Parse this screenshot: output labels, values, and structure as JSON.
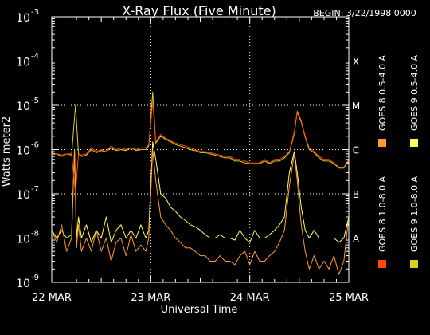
{
  "chart_data": {
    "type": "line",
    "title": "X-Ray Flux (Five Minute)",
    "begin": "BEGIN: 3/22/1998 0000",
    "xlabel": "Universal Time",
    "ylabel": "Watts meter2",
    "y_scale": "log",
    "ylim": [
      1e-09,
      0.001
    ],
    "y_ticks": [
      {
        "value": 0.001,
        "base": "10",
        "exp": "-3"
      },
      {
        "value": 0.0001,
        "base": "10",
        "exp": "-4"
      },
      {
        "value": 1e-05,
        "base": "10",
        "exp": "-5"
      },
      {
        "value": 1e-06,
        "base": "10",
        "exp": "-6"
      },
      {
        "value": 1e-07,
        "base": "10",
        "exp": "-7"
      },
      {
        "value": 1e-08,
        "base": "10",
        "exp": "-8"
      },
      {
        "value": 1e-09,
        "base": "10",
        "exp": "-9"
      }
    ],
    "xlim": [
      "1998-03-22",
      "1998-03-25"
    ],
    "x_ticks": [
      {
        "label": "22 MAR",
        "value": 0
      },
      {
        "label": "23 MAR",
        "value": 1
      },
      {
        "label": "24 MAR",
        "value": 2
      },
      {
        "label": "25 MAR",
        "value": 3
      }
    ],
    "gridlines": {
      "horizontal": "dotted",
      "vertical": "dotted"
    },
    "flare_classes": [
      {
        "label": "X",
        "value": 0.0001
      },
      {
        "label": "M",
        "value": 1e-05
      },
      {
        "label": "C",
        "value": 1e-06
      },
      {
        "label": "B",
        "value": 1e-07
      },
      {
        "label": "A",
        "value": 1e-08
      }
    ],
    "legend_placement": "right, vertical",
    "series": [
      {
        "name": "GOES 8 1.0-8.0 A",
        "color": "#ff4a00",
        "x": [
          0.0,
          0.05,
          0.1,
          0.15,
          0.2,
          0.24,
          0.27,
          0.3,
          0.35,
          0.4,
          0.45,
          0.5,
          0.55,
          0.6,
          0.65,
          0.7,
          0.75,
          0.8,
          0.85,
          0.9,
          0.95,
          0.98,
          1.02,
          1.05,
          1.1,
          1.15,
          1.2,
          1.25,
          1.3,
          1.35,
          1.4,
          1.45,
          1.5,
          1.55,
          1.6,
          1.65,
          1.7,
          1.75,
          1.8,
          1.85,
          1.9,
          1.95,
          2.0,
          2.05,
          2.1,
          2.15,
          2.2,
          2.25,
          2.3,
          2.35,
          2.4,
          2.45,
          2.48,
          2.52,
          2.56,
          2.6,
          2.65,
          2.7,
          2.75,
          2.8,
          2.85,
          2.9,
          2.95,
          3.0
        ],
        "y": [
          8.5e-07,
          8e-07,
          7.5e-07,
          8e-07,
          8e-07,
          1e-07,
          8e-07,
          7.5e-07,
          8e-07,
          1.1e-06,
          9e-07,
          1e-06,
          9e-07,
          1.2e-06,
          1e-06,
          1.1e-06,
          1e-06,
          1.1e-06,
          1e-06,
          1.1e-06,
          1.1e-06,
          1.3e-06,
          1.2e-05,
          1.5e-06,
          2.2e-06,
          1.8e-06,
          1.6e-06,
          1.4e-06,
          1.3e-06,
          1.2e-06,
          1.1e-06,
          1e-06,
          9e-07,
          9e-07,
          8.5e-07,
          8e-07,
          7.5e-07,
          7e-07,
          7e-07,
          6e-07,
          6e-07,
          5.5e-07,
          5e-07,
          5e-07,
          5e-07,
          6e-07,
          5e-07,
          6e-07,
          6e-07,
          7e-07,
          9e-07,
          2.5e-06,
          7.5e-06,
          4.5e-06,
          2e-06,
          1.1e-06,
          9e-07,
          7e-07,
          6e-07,
          6e-07,
          5e-07,
          4e-07,
          4e-07,
          6e-07
        ]
      },
      {
        "name": "GOES 8 0.5-4.0 A",
        "color": "#ff9a30",
        "x": [
          0.0,
          0.05,
          0.1,
          0.15,
          0.2,
          0.23,
          0.25,
          0.27,
          0.3,
          0.35,
          0.4,
          0.45,
          0.5,
          0.55,
          0.6,
          0.65,
          0.7,
          0.75,
          0.8,
          0.85,
          0.9,
          0.95,
          0.98,
          1.02,
          1.05,
          1.1,
          1.15,
          1.2,
          1.25,
          1.3,
          1.35,
          1.4,
          1.45,
          1.5,
          1.55,
          1.6,
          1.65,
          1.7,
          1.75,
          1.8,
          1.85,
          1.9,
          1.95,
          2.0,
          2.05,
          2.1,
          2.15,
          2.2,
          2.25,
          2.3,
          2.35,
          2.4,
          2.45,
          2.48,
          2.52,
          2.56,
          2.6,
          2.65,
          2.7,
          2.75,
          2.8,
          2.85,
          2.9,
          2.95,
          3.0
        ],
        "y": [
          1.5e-08,
          8e-09,
          2e-08,
          5e-09,
          1e-08,
          1e-06,
          6e-09,
          2e-08,
          5e-09,
          1e-08,
          5e-09,
          1.5e-08,
          5e-09,
          1e-08,
          3e-09,
          8e-09,
          1e-08,
          4e-09,
          1.2e-08,
          5e-09,
          7e-09,
          5e-09,
          1e-08,
          1e-06,
          2e-07,
          3e-08,
          2e-08,
          1.5e-08,
          1e-08,
          8e-09,
          6e-09,
          6e-09,
          5e-09,
          4e-09,
          4e-09,
          3e-09,
          3e-09,
          4e-09,
          3e-09,
          3e-09,
          2.5e-09,
          4e-09,
          5e-09,
          2.5e-09,
          5e-09,
          3e-09,
          3e-09,
          4e-09,
          5e-09,
          8e-09,
          1.5e-08,
          1.5e-07,
          8e-07,
          2e-07,
          2e-08,
          5e-09,
          2e-09,
          4e-09,
          2e-09,
          3e-09,
          2e-09,
          4e-09,
          1.5e-09,
          3e-09,
          3e-08
        ]
      },
      {
        "name": "GOES 9 1.0-8.0 A",
        "color": "#d8d020",
        "x": [
          0.0,
          0.05,
          0.1,
          0.15,
          0.2,
          0.24,
          0.27,
          0.3,
          0.35,
          0.4,
          0.45,
          0.5,
          0.55,
          0.6,
          0.65,
          0.7,
          0.75,
          0.8,
          0.85,
          0.9,
          0.95,
          0.98,
          1.02,
          1.05,
          1.1,
          1.15,
          1.2,
          1.25,
          1.3,
          1.35,
          1.4,
          1.45,
          1.5,
          1.55,
          1.6,
          1.65,
          1.7,
          1.75,
          1.8,
          1.85,
          1.9,
          1.95,
          2.0,
          2.05,
          2.1,
          2.15,
          2.2,
          2.25,
          2.3,
          2.35,
          2.4,
          2.45,
          2.48,
          2.52,
          2.56,
          2.6,
          2.65,
          2.7,
          2.75,
          2.8,
          2.85,
          2.9,
          2.95,
          3.0
        ],
        "y": [
          8e-07,
          8e-07,
          7e-07,
          8e-07,
          7.5e-07,
          1e-05,
          8e-07,
          7e-07,
          7.5e-07,
          1e-06,
          8.5e-07,
          9.5e-07,
          9e-07,
          1.1e-06,
          9.5e-07,
          1e-06,
          9.5e-07,
          1.1e-06,
          9.5e-07,
          1e-06,
          1e-06,
          1.2e-06,
          2e-05,
          1.4e-06,
          2e-06,
          1.7e-06,
          1.5e-06,
          1.3e-06,
          1.2e-06,
          1.1e-06,
          1e-06,
          9.5e-07,
          8.5e-07,
          8.5e-07,
          8e-07,
          7.5e-07,
          7e-07,
          6.5e-07,
          6.5e-07,
          5.5e-07,
          5.5e-07,
          5e-07,
          4.8e-07,
          4.8e-07,
          4.8e-07,
          5.5e-07,
          4.8e-07,
          5.5e-07,
          5.5e-07,
          6.5e-07,
          8.5e-07,
          2.3e-06,
          7e-06,
          4.2e-06,
          1.9e-06,
          1e-06,
          8.5e-07,
          6.5e-07,
          5.5e-07,
          5.5e-07,
          4.8e-07,
          3.8e-07,
          3.8e-07,
          5.5e-07
        ]
      },
      {
        "name": "GOES 9 0.5-4.0 A",
        "color": "#ffff60",
        "x": [
          0.0,
          0.05,
          0.1,
          0.15,
          0.2,
          0.23,
          0.25,
          0.27,
          0.3,
          0.35,
          0.4,
          0.45,
          0.5,
          0.55,
          0.6,
          0.65,
          0.7,
          0.75,
          0.8,
          0.85,
          0.9,
          0.95,
          0.98,
          1.02,
          1.05,
          1.1,
          1.15,
          1.2,
          1.25,
          1.3,
          1.35,
          1.4,
          1.45,
          1.5,
          1.55,
          1.6,
          1.65,
          1.7,
          1.75,
          1.8,
          1.85,
          1.9,
          1.95,
          2.0,
          2.05,
          2.1,
          2.15,
          2.2,
          2.25,
          2.3,
          2.35,
          2.4,
          2.45,
          2.48,
          2.52,
          2.56,
          2.6,
          2.65,
          2.7,
          2.75,
          2.8,
          2.85,
          2.9,
          2.95,
          3.0
        ],
        "y": [
          1.5e-08,
          1e-08,
          1.5e-08,
          1e-08,
          1.2e-08,
          1e-06,
          1e-08,
          3e-08,
          1e-08,
          2e-08,
          8e-09,
          1.5e-08,
          1e-08,
          3e-08,
          8e-09,
          1.5e-08,
          2e-08,
          1e-08,
          1.5e-08,
          1e-08,
          2e-08,
          1e-08,
          1.5e-08,
          1.5e-06,
          6e-07,
          1e-07,
          8e-08,
          5e-08,
          4e-08,
          3e-08,
          2.5e-08,
          2e-08,
          1.8e-08,
          1.5e-08,
          1.2e-08,
          1e-08,
          1e-08,
          1.2e-08,
          1e-08,
          1e-08,
          9e-09,
          1.5e-08,
          1e-08,
          8e-09,
          1.5e-08,
          1e-08,
          1e-08,
          1.2e-08,
          1.5e-08,
          2e-08,
          3e-08,
          3e-07,
          9e-07,
          3e-07,
          5e-08,
          1.5e-08,
          1e-08,
          1.5e-08,
          1e-08,
          1e-08,
          1e-08,
          1e-08,
          8e-09,
          1e-08,
          3e-08
        ]
      }
    ]
  }
}
